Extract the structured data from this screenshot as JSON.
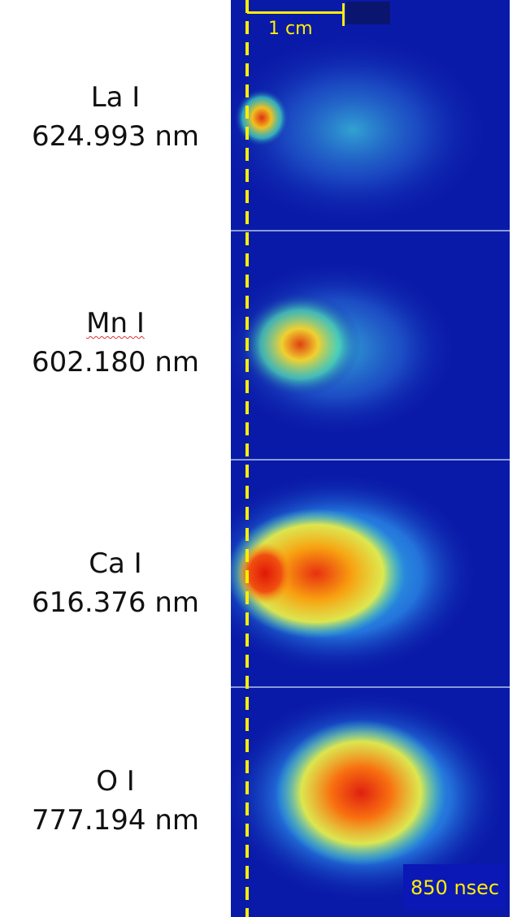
{
  "scale_bar": {
    "label": "1 cm"
  },
  "time_stamp": {
    "label": "850 nsec"
  },
  "colors": {
    "background_blue": "#0a1aa8",
    "marker_yellow": "#ffee00"
  },
  "rows": [
    {
      "element": "La I",
      "wavelength": "624.993 nm",
      "intensity": 0.35
    },
    {
      "element": "Mn I",
      "wavelength": "602.180 nm",
      "intensity": 0.55
    },
    {
      "element": "Ca I",
      "wavelength": "616.376 nm",
      "intensity": 0.95
    },
    {
      "element": "O I",
      "wavelength": "777.194 nm",
      "intensity": 0.9
    }
  ]
}
